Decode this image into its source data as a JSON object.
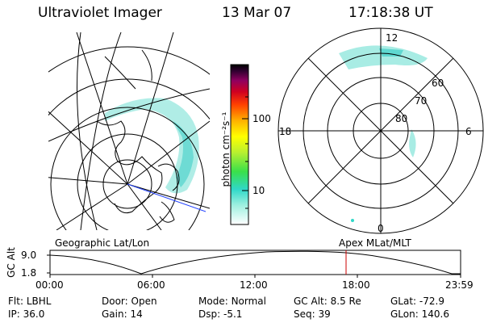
{
  "header": {
    "instrument": "Ultraviolet Imager",
    "date": "13 Mar 07",
    "time": "17:18:38 UT"
  },
  "colorbar": {
    "unit_label": "photon cm⁻²s⁻¹",
    "ticks": [
      "100",
      "10"
    ]
  },
  "left_panel": {
    "caption": "Geographic Lat/Lon"
  },
  "right_panel": {
    "caption": "Apex MLat/MLT",
    "mlt_labels": {
      "top": "12",
      "bottom": "0",
      "left": "18",
      "right": "6"
    },
    "mlat_labels": [
      "60",
      "70",
      "80"
    ]
  },
  "altitude_plot": {
    "ylabel": "GC Alt",
    "y_ticks": [
      "9.0",
      "1.8"
    ],
    "x_ticks": [
      "00:00",
      "06:00",
      "12:00",
      "18:00",
      "23:59"
    ],
    "marker_time_hours": 17.31,
    "marker_color": "#cc0000"
  },
  "footer": {
    "row1": [
      {
        "label": "Flt:",
        "value": "LBHL"
      },
      {
        "label": "Door:",
        "value": "Open"
      },
      {
        "label": "Mode:",
        "value": "Normal"
      },
      {
        "label": "GC Alt:",
        "value": "8.5 Re"
      },
      {
        "label": "GLat:",
        "value": "-72.9"
      }
    ],
    "row2": [
      {
        "label": "IP:",
        "value": "36.0"
      },
      {
        "label": "Gain:",
        "value": "14"
      },
      {
        "label": "Dsp:",
        "value": "-5.1"
      },
      {
        "label": "Seq:",
        "value": "39"
      },
      {
        "label": "GLon:",
        "value": "140.6"
      }
    ]
  }
}
